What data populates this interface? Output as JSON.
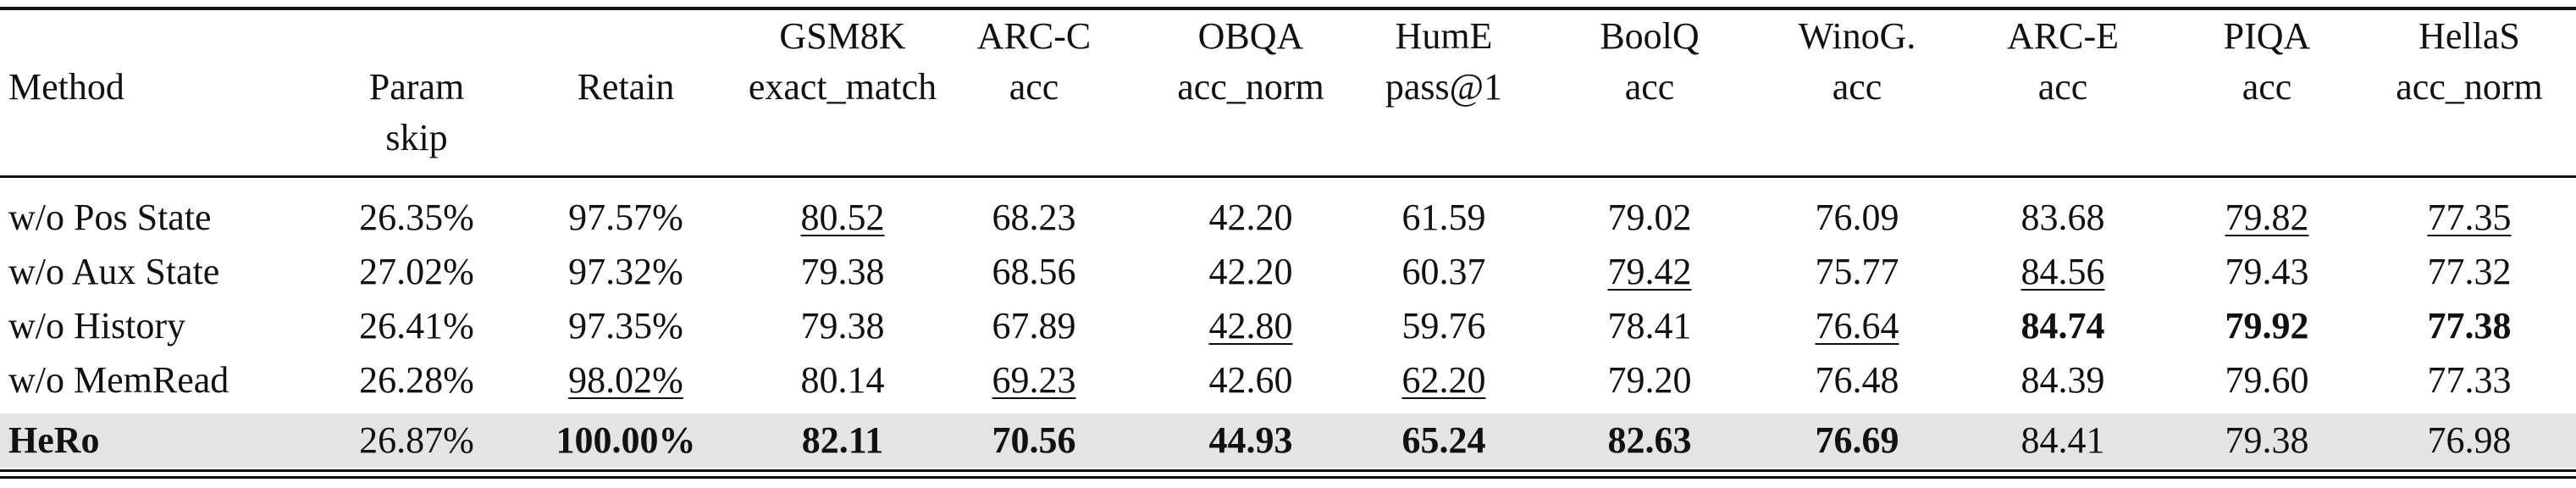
{
  "table": {
    "header": [
      [
        "Method"
      ],
      [
        "Param",
        "skip"
      ],
      [
        "Retain"
      ],
      [
        "GSM8K",
        "exact_match"
      ],
      [
        "ARC-C",
        "acc"
      ],
      [
        "OBQA",
        "acc_norm"
      ],
      [
        "HumE",
        "pass@1"
      ],
      [
        "BoolQ",
        "acc"
      ],
      [
        "WinoG.",
        "acc"
      ],
      [
        "ARC-E",
        "acc"
      ],
      [
        "PIQA",
        "acc"
      ],
      [
        "HellaS",
        "acc_norm"
      ]
    ],
    "rows": [
      {
        "cells": [
          "w/o Pos State",
          "26.35%",
          "97.57%",
          "80.52",
          "68.23",
          "42.20",
          "61.59",
          "79.02",
          "76.09",
          "83.68",
          "79.82",
          "77.35"
        ],
        "bold": [],
        "underline": [
          3,
          10,
          11
        ],
        "highlight": false
      },
      {
        "cells": [
          "w/o Aux State",
          "27.02%",
          "97.32%",
          "79.38",
          "68.56",
          "42.20",
          "60.37",
          "79.42",
          "75.77",
          "84.56",
          "79.43",
          "77.32"
        ],
        "bold": [],
        "underline": [
          7,
          9
        ],
        "highlight": false
      },
      {
        "cells": [
          "w/o History",
          "26.41%",
          "97.35%",
          "79.38",
          "67.89",
          "42.80",
          "59.76",
          "78.41",
          "76.64",
          "84.74",
          "79.92",
          "77.38"
        ],
        "bold": [
          9,
          10,
          11
        ],
        "underline": [
          5,
          8
        ],
        "highlight": false
      },
      {
        "cells": [
          "w/o MemRead",
          "26.28%",
          "98.02%",
          "80.14",
          "69.23",
          "42.60",
          "62.20",
          "79.20",
          "76.48",
          "84.39",
          "79.60",
          "77.33"
        ],
        "bold": [],
        "underline": [
          2,
          4,
          6
        ],
        "highlight": false
      },
      {
        "cells": [
          "HeRo",
          "26.87%",
          "100.00%",
          "82.11",
          "70.56",
          "44.93",
          "65.24",
          "82.63",
          "76.69",
          "84.41",
          "79.38",
          "76.98"
        ],
        "bold": [
          0,
          2,
          3,
          4,
          5,
          6,
          7,
          8
        ],
        "underline": [],
        "highlight": true
      }
    ]
  }
}
